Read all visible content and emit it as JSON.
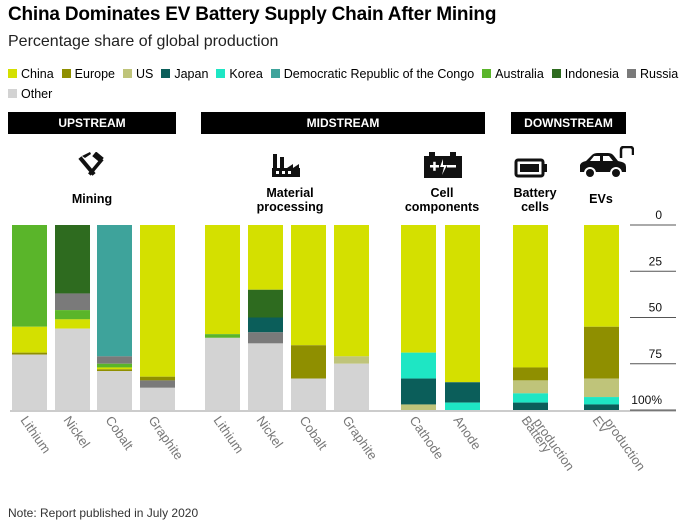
{
  "header": {
    "title": "China Dominates EV Battery Supply Chain After Mining",
    "subtitle": "Percentage share of global production"
  },
  "note": "Note: Report published in July 2020",
  "colors": {
    "China": "#d4e000",
    "Europe": "#8f8f00",
    "US": "#bfc47a",
    "Japan": "#0b5e5a",
    "Korea": "#1ee6c4",
    "Democratic Republic of the Congo": "#3ea39b",
    "Australia": "#5ab52a",
    "Indonesia": "#2e6b1f",
    "Russia": "#7a7a7a",
    "Other": "#d3d3d3"
  },
  "legend": [
    {
      "label": "China",
      "key": "China"
    },
    {
      "label": "Europe",
      "key": "Europe"
    },
    {
      "label": "US",
      "key": "US"
    },
    {
      "label": "Japan",
      "key": "Japan"
    },
    {
      "label": "Korea",
      "key": "Korea"
    },
    {
      "label": "Democratic Republic of the Congo",
      "key": "Democratic Republic of the Congo"
    },
    {
      "label": "Australia",
      "key": "Australia"
    },
    {
      "label": "Indonesia",
      "key": "Indonesia"
    },
    {
      "label": "Russia",
      "key": "Russia"
    },
    {
      "label": "Other",
      "key": "Other"
    }
  ],
  "stages": [
    {
      "label": "UPSTREAM"
    },
    {
      "label": "MIDSTREAM"
    },
    {
      "label": "DOWNSTREAM"
    }
  ],
  "groups": [
    {
      "label_lines": [
        "Mining"
      ],
      "icon": "mining-pickaxe-hammer-icon"
    },
    {
      "label_lines": [
        "Material",
        "processing"
      ],
      "icon": "factory-icon"
    },
    {
      "label_lines": [
        "Cell",
        "components"
      ],
      "icon": "battery-plus-minus-icon"
    },
    {
      "label_lines": [
        "Battery",
        "cells"
      ],
      "icon": "battery-cell-icon"
    },
    {
      "label_lines": [
        "EVs"
      ],
      "icon": "electric-car-icon"
    }
  ],
  "chart_data": {
    "type": "bar",
    "stacked": true,
    "orientation": "vertical-top-down",
    "ylim": [
      0,
      100
    ],
    "yticks": [
      "0",
      "25",
      "50",
      "75",
      "100%"
    ],
    "ytick_values": [
      0,
      25,
      50,
      75,
      100
    ],
    "categories": [
      {
        "label_lines": [
          "Lithium"
        ],
        "group": 0
      },
      {
        "label_lines": [
          "Nickel"
        ],
        "group": 0
      },
      {
        "label_lines": [
          "Cobalt"
        ],
        "group": 0
      },
      {
        "label_lines": [
          "Graphite"
        ],
        "group": 0
      },
      {
        "label_lines": [
          "Lithium"
        ],
        "group": 1
      },
      {
        "label_lines": [
          "Nickel"
        ],
        "group": 1
      },
      {
        "label_lines": [
          "Cobalt"
        ],
        "group": 1
      },
      {
        "label_lines": [
          "Graphite"
        ],
        "group": 1
      },
      {
        "label_lines": [
          "Cathode"
        ],
        "group": 2
      },
      {
        "label_lines": [
          "Anode"
        ],
        "group": 2
      },
      {
        "label_lines": [
          "Battery",
          "production"
        ],
        "group": 3
      },
      {
        "label_lines": [
          "EV",
          "production"
        ],
        "group": 4
      }
    ],
    "stacks": [
      [
        {
          "k": "Australia",
          "v": 55
        },
        {
          "k": "China",
          "v": 14
        },
        {
          "k": "Europe",
          "v": 1
        },
        {
          "k": "Other",
          "v": 30
        }
      ],
      [
        {
          "k": "Indonesia",
          "v": 37
        },
        {
          "k": "Russia",
          "v": 9
        },
        {
          "k": "Australia",
          "v": 5
        },
        {
          "k": "China",
          "v": 5
        },
        {
          "k": "Other",
          "v": 44
        }
      ],
      [
        {
          "k": "Democratic Republic of the Congo",
          "v": 71
        },
        {
          "k": "Russia",
          "v": 4
        },
        {
          "k": "Australia",
          "v": 2
        },
        {
          "k": "China",
          "v": 1
        },
        {
          "k": "Europe",
          "v": 1
        },
        {
          "k": "Other",
          "v": 21
        }
      ],
      [
        {
          "k": "China",
          "v": 82
        },
        {
          "k": "Europe",
          "v": 2
        },
        {
          "k": "Russia",
          "v": 4
        },
        {
          "k": "Other",
          "v": 12
        }
      ],
      [
        {
          "k": "China",
          "v": 59
        },
        {
          "k": "Australia",
          "v": 2
        },
        {
          "k": "Other",
          "v": 39
        }
      ],
      [
        {
          "k": "China",
          "v": 35
        },
        {
          "k": "Indonesia",
          "v": 15
        },
        {
          "k": "Japan",
          "v": 8
        },
        {
          "k": "Russia",
          "v": 6
        },
        {
          "k": "Other",
          "v": 36
        }
      ],
      [
        {
          "k": "China",
          "v": 65
        },
        {
          "k": "Europe",
          "v": 18
        },
        {
          "k": "Other",
          "v": 17
        }
      ],
      [
        {
          "k": "China",
          "v": 71
        },
        {
          "k": "US",
          "v": 4
        },
        {
          "k": "Other",
          "v": 25
        }
      ],
      [
        {
          "k": "China",
          "v": 69
        },
        {
          "k": "Korea",
          "v": 14
        },
        {
          "k": "Japan",
          "v": 14
        },
        {
          "k": "US",
          "v": 3
        }
      ],
      [
        {
          "k": "China",
          "v": 85
        },
        {
          "k": "Japan",
          "v": 11
        },
        {
          "k": "Korea",
          "v": 4
        }
      ],
      [
        {
          "k": "China",
          "v": 77
        },
        {
          "k": "Europe",
          "v": 7
        },
        {
          "k": "US",
          "v": 7
        },
        {
          "k": "Korea",
          "v": 5
        },
        {
          "k": "Japan",
          "v": 4
        }
      ],
      [
        {
          "k": "China",
          "v": 55
        },
        {
          "k": "Europe",
          "v": 28
        },
        {
          "k": "US",
          "v": 10
        },
        {
          "k": "Korea",
          "v": 4
        },
        {
          "k": "Japan",
          "v": 3
        }
      ]
    ]
  }
}
